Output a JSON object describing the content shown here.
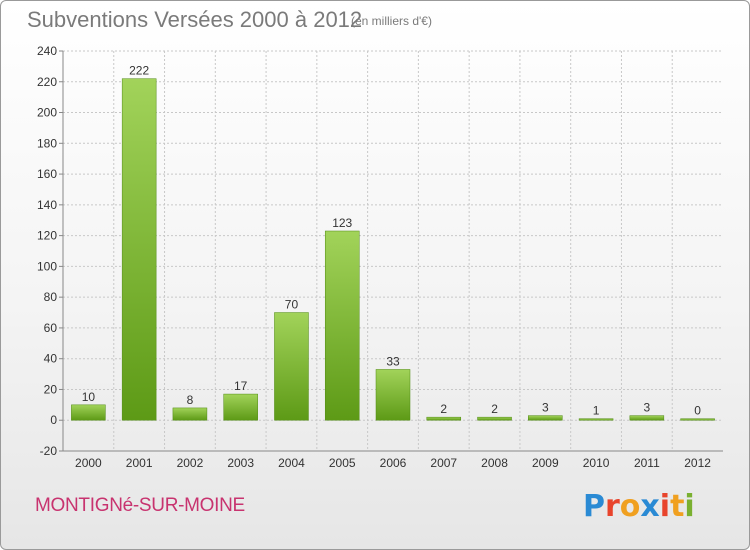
{
  "header": {
    "title": "Subventions Versées 2000 à 2012",
    "unit": "(en milliers d'€)"
  },
  "footer": {
    "commune": "MONTIGNé-SUR-MOINE",
    "logo_text": "Proxiti",
    "logo_colors": [
      "#2a8ad4",
      "#e8442c",
      "#f0a020",
      "#2a8ad4",
      "#e8442c",
      "#f0a020",
      "#7ab030"
    ]
  },
  "colors": {
    "bar_light": "#a2d35a",
    "bar_dark": "#5d9a16",
    "grid": "#c8c8c8",
    "axis_text": "#333333"
  },
  "chart_data": {
    "type": "bar",
    "title": "Subventions Versées 2000 à 2012",
    "subtitle": "(en milliers d'€)",
    "categories": [
      "2000",
      "2001",
      "2002",
      "2003",
      "2004",
      "2005",
      "2006",
      "2007",
      "2008",
      "2009",
      "2010",
      "2011",
      "2012"
    ],
    "values": [
      10,
      222,
      8,
      17,
      70,
      123,
      33,
      2,
      2,
      3,
      1,
      3,
      0
    ],
    "ylim": [
      -20,
      240
    ],
    "yticks": [
      -20,
      0,
      20,
      40,
      60,
      80,
      100,
      120,
      140,
      160,
      180,
      200,
      220,
      240
    ],
    "grid": true,
    "xlabel": "",
    "ylabel": ""
  }
}
